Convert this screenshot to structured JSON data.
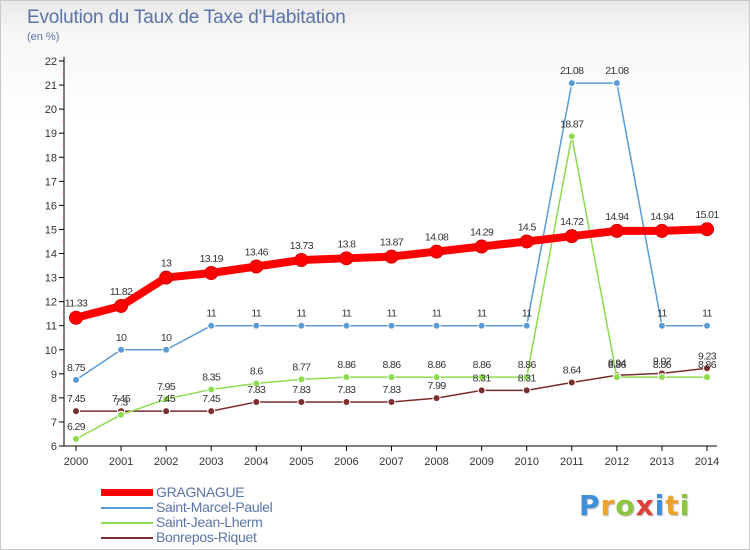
{
  "header": {
    "title": "Evolution du Taux de Taxe d'Habitation",
    "unit": "(en %)"
  },
  "logo": {
    "text": "Proxiti",
    "letters": [
      {
        "ch": "P",
        "color": "#3d8fd9"
      },
      {
        "ch": "r",
        "color": "#f0a22e"
      },
      {
        "ch": "o",
        "color": "#8cc63e"
      },
      {
        "ch": "x",
        "color": "#e0403a"
      },
      {
        "ch": "i",
        "color": "#3d8fd9"
      },
      {
        "ch": "t",
        "color": "#f0a22e"
      },
      {
        "ch": "i",
        "color": "#8cc63e"
      }
    ]
  },
  "chart_data": {
    "type": "line",
    "title": "Evolution du Taux de Taxe d'Habitation",
    "ylabel": "(en %)",
    "xlabel": "",
    "x": [
      2000,
      2001,
      2002,
      2003,
      2004,
      2005,
      2006,
      2007,
      2008,
      2009,
      2010,
      2011,
      2012,
      2013,
      2014
    ],
    "ylim": [
      6,
      22
    ],
    "yticks": [
      6,
      7,
      8,
      9,
      10,
      11,
      12,
      13,
      14,
      15,
      16,
      17,
      18,
      19,
      20,
      21,
      22
    ],
    "grid": false,
    "legend_position": "bottom-left",
    "series": [
      {
        "name": "GRAGNAGUE",
        "color": "#ff0000",
        "emphasis": true,
        "values": [
          11.33,
          11.82,
          13,
          13.19,
          13.46,
          13.73,
          13.8,
          13.87,
          14.08,
          14.29,
          14.5,
          14.72,
          14.94,
          14.94,
          15.01
        ],
        "labels": [
          "11.33",
          "11.82",
          "13",
          "13.19",
          "13.46",
          "13.73",
          "13.8",
          "13.87",
          "14.08",
          "14.29",
          "14.5",
          "14.72",
          "14.94",
          "14.94",
          "15.01"
        ]
      },
      {
        "name": "Saint-Marcel-Paulel",
        "color": "#5b9bd5",
        "emphasis": false,
        "values": [
          8.75,
          10,
          10,
          11,
          11,
          11,
          11,
          11,
          11,
          11,
          11,
          21.08,
          21.08,
          11,
          11
        ],
        "labels": [
          "8.75",
          "10",
          "10",
          "11",
          "11",
          "11",
          "11",
          "11",
          "11",
          "11",
          "11",
          "21.08",
          "21.08",
          "11",
          "11"
        ]
      },
      {
        "name": "Saint-Jean-Lherm",
        "color": "#8ddb4e",
        "emphasis": false,
        "values": [
          6.29,
          7.3,
          7.95,
          8.35,
          8.6,
          8.77,
          8.86,
          8.86,
          8.86,
          8.86,
          8.86,
          18.87,
          8.86,
          8.86,
          8.86
        ],
        "labels": [
          "6.29",
          "7.3",
          "7.95",
          "8.35",
          "8.6",
          "8.77",
          "8.86",
          "8.86",
          "8.86",
          "8.86",
          "8.86",
          "18.87",
          "8.86",
          "8.86",
          "8.86"
        ]
      },
      {
        "name": "Bonrepos-Riquet",
        "color": "#7b2c2c",
        "emphasis": false,
        "values": [
          7.45,
          7.45,
          7.45,
          7.45,
          7.83,
          7.83,
          7.83,
          7.83,
          7.99,
          8.31,
          8.31,
          8.64,
          8.94,
          9.02,
          9.23
        ],
        "labels": [
          "7.45",
          "7.45",
          "7.45",
          "7.45",
          "7.83",
          "7.83",
          "7.83",
          "7.83",
          "7.99",
          "8.31",
          "8.31",
          "8.64",
          "8.94",
          "9.02",
          "9.23"
        ]
      }
    ]
  }
}
